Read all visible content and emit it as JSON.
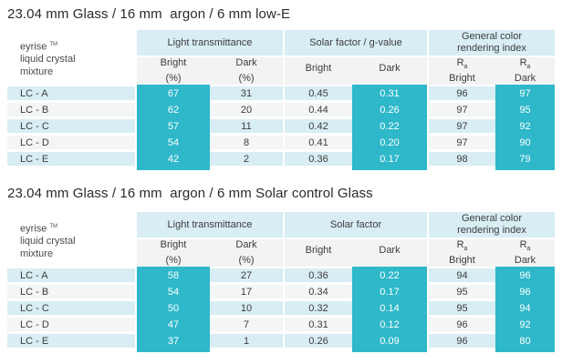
{
  "colors": {
    "highlight_teal": "#2eb8ca",
    "header_light_blue": "#d8edf4",
    "subheader_gray": "#f2f3f3",
    "row_alt_gray": "#f4f5f5",
    "title_text": "#2b2b2b",
    "body_text": "#3c3c3c",
    "highlight_text": "#ffffff"
  },
  "tables": [
    {
      "title": "23.04 mm Glass / 16 mm  argon / 6 mm low-E",
      "corner": {
        "brand": "eyrise",
        "tm": "TM",
        "line2": "liquid crystal",
        "line3": "mixture"
      },
      "groups": [
        {
          "label": "Light transmittance"
        },
        {
          "label": "Solar factor / g-value"
        },
        {
          "label": "General color\nrendering index"
        }
      ],
      "subcols": [
        {
          "l1": "Bright",
          "l2": "(%)"
        },
        {
          "l1": "Dark",
          "l2": "(%)"
        },
        {
          "l1": "Bright"
        },
        {
          "l1": "Dark"
        },
        {
          "l1": "R",
          "sub": "a",
          "l2": "Bright"
        },
        {
          "l1": "R",
          "sub": "a",
          "l2": "Dark"
        }
      ],
      "rows": [
        {
          "label": "LC - A",
          "values": [
            "67",
            "31",
            "0.45",
            "0.31",
            "96",
            "97"
          ]
        },
        {
          "label": "LC - B",
          "values": [
            "62",
            "20",
            "0.44",
            "0.26",
            "97",
            "95"
          ]
        },
        {
          "label": "LC - C",
          "values": [
            "57",
            "11",
            "0.42",
            "0.22",
            "97",
            "92"
          ]
        },
        {
          "label": "LC - D",
          "values": [
            "54",
            "8",
            "0.41",
            "0.20",
            "97",
            "90"
          ]
        },
        {
          "label": "LC - E",
          "values": [
            "42",
            "2",
            "0.36",
            "0.17",
            "98",
            "79"
          ]
        }
      ]
    },
    {
      "title": "23.04 mm Glass / 16 mm  argon / 6 mm Solar control Glass",
      "corner": {
        "brand": "eyrise",
        "tm": "TM",
        "line2": "liquid crystal",
        "line3": "mixture"
      },
      "groups": [
        {
          "label": "Light transmittance"
        },
        {
          "label": "Solar factor"
        },
        {
          "label": "General color\nrendering index"
        }
      ],
      "subcols": [
        {
          "l1": "Bright",
          "l2": "(%)"
        },
        {
          "l1": "Dark",
          "l2": "(%)"
        },
        {
          "l1": "Bright"
        },
        {
          "l1": "Dark"
        },
        {
          "l1": "R",
          "sub": "a",
          "l2": "Bright"
        },
        {
          "l1": "R",
          "sub": "a",
          "l2": "Dark"
        }
      ],
      "rows": [
        {
          "label": "LC - A",
          "values": [
            "58",
            "27",
            "0.36",
            "0.22",
            "94",
            "96"
          ]
        },
        {
          "label": "LC - B",
          "values": [
            "54",
            "17",
            "0.34",
            "0.17",
            "95",
            "96"
          ]
        },
        {
          "label": "LC - C",
          "values": [
            "50",
            "10",
            "0.32",
            "0.14",
            "95",
            "94"
          ]
        },
        {
          "label": "LC - D",
          "values": [
            "47",
            "7",
            "0.31",
            "0.12",
            "96",
            "92"
          ]
        },
        {
          "label": "LC - E",
          "values": [
            "37",
            "1",
            "0.26",
            "0.09",
            "96",
            "80"
          ]
        }
      ]
    }
  ]
}
